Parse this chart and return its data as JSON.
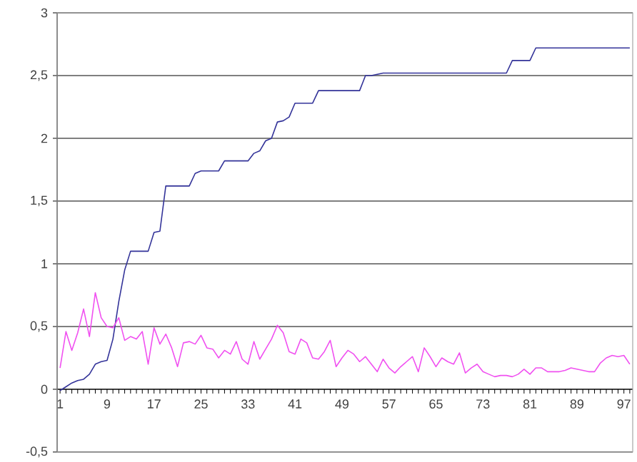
{
  "chart_data": {
    "type": "line",
    "categories": [
      "1",
      null,
      null,
      null,
      null,
      null,
      null,
      null,
      "9",
      null,
      null,
      null,
      null,
      null,
      null,
      null,
      "17",
      null,
      null,
      null,
      null,
      null,
      null,
      null,
      "25",
      null,
      null,
      null,
      null,
      null,
      null,
      null,
      "33",
      null,
      null,
      null,
      null,
      null,
      null,
      null,
      "41",
      null,
      null,
      null,
      null,
      null,
      null,
      null,
      "49",
      null,
      null,
      null,
      null,
      null,
      null,
      null,
      "57",
      null,
      null,
      null,
      null,
      null,
      null,
      null,
      "65",
      null,
      null,
      null,
      null,
      null,
      null,
      null,
      "73",
      null,
      null,
      null,
      null,
      null,
      null,
      null,
      "81",
      null,
      null,
      null,
      null,
      null,
      null,
      null,
      "89",
      null,
      null,
      null,
      null,
      null,
      null,
      null,
      "97",
      null
    ],
    "series": [
      {
        "color": "#333399",
        "values": [
          -0.01,
          0.02,
          0.05,
          0.07,
          0.08,
          0.12,
          0.2,
          0.22,
          0.23,
          0.4,
          0.7,
          0.95,
          1.1,
          1.1,
          1.1,
          1.1,
          1.25,
          1.26,
          1.62,
          1.62,
          1.62,
          1.62,
          1.62,
          1.72,
          1.74,
          1.74,
          1.74,
          1.74,
          1.82,
          1.82,
          1.82,
          1.82,
          1.82,
          1.88,
          1.9,
          1.98,
          2.0,
          2.13,
          2.14,
          2.17,
          2.28,
          2.28,
          2.28,
          2.28,
          2.38,
          2.38,
          2.38,
          2.38,
          2.38,
          2.38,
          2.38,
          2.38,
          2.5,
          2.5,
          2.51,
          2.52,
          2.52,
          2.52,
          2.52,
          2.52,
          2.52,
          2.52,
          2.52,
          2.52,
          2.52,
          2.52,
          2.52,
          2.52,
          2.52,
          2.52,
          2.52,
          2.52,
          2.52,
          2.52,
          2.52,
          2.52,
          2.52,
          2.62,
          2.62,
          2.62,
          2.62,
          2.72,
          2.72,
          2.72,
          2.72,
          2.72,
          2.72,
          2.72,
          2.72,
          2.72,
          2.72,
          2.72,
          2.72,
          2.72,
          2.72,
          2.72,
          2.72,
          2.72
        ]
      },
      {
        "color": "#f050f0",
        "values": [
          0.17,
          0.46,
          0.31,
          0.45,
          0.64,
          0.42,
          0.77,
          0.57,
          0.5,
          0.49,
          0.57,
          0.39,
          0.42,
          0.4,
          0.46,
          0.2,
          0.49,
          0.36,
          0.44,
          0.33,
          0.18,
          0.37,
          0.38,
          0.36,
          0.43,
          0.33,
          0.32,
          0.25,
          0.31,
          0.28,
          0.38,
          0.24,
          0.2,
          0.38,
          0.24,
          0.32,
          0.4,
          0.51,
          0.45,
          0.3,
          0.28,
          0.4,
          0.37,
          0.25,
          0.24,
          0.3,
          0.39,
          0.18,
          0.25,
          0.31,
          0.28,
          0.22,
          0.26,
          0.2,
          0.14,
          0.24,
          0.17,
          0.13,
          0.18,
          0.22,
          0.26,
          0.14,
          0.33,
          0.26,
          0.18,
          0.25,
          0.22,
          0.2,
          0.29,
          0.13,
          0.17,
          0.2,
          0.14,
          0.12,
          0.1,
          0.11,
          0.11,
          0.1,
          0.12,
          0.16,
          0.12,
          0.17,
          0.17,
          0.14,
          0.14,
          0.14,
          0.15,
          0.17,
          0.16,
          0.15,
          0.14,
          0.14,
          0.21,
          0.25,
          0.27,
          0.26,
          0.27,
          0.2
        ]
      }
    ],
    "ylim": [
      -0.5,
      3
    ],
    "yticks": [
      {
        "value": -0.5,
        "label": "-0,5"
      },
      0,
      {
        "value": 0.5,
        "label": "0,5"
      },
      1,
      {
        "value": 1.5,
        "label": "1,5"
      },
      2,
      {
        "value": 2.5,
        "label": "2,5"
      },
      3
    ],
    "grid": "y",
    "marker": "none"
  }
}
